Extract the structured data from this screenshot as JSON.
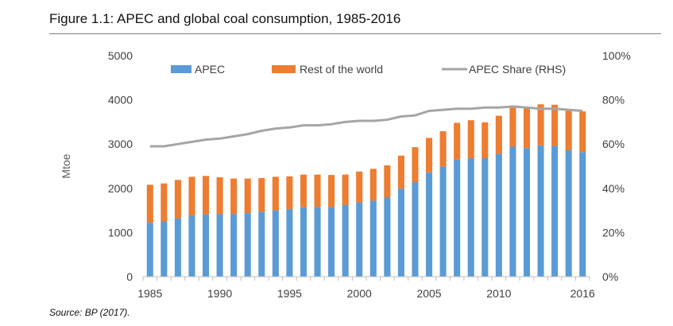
{
  "figure": {
    "title": "Figure 1.1: APEC and global coal consumption, 1985-2016",
    "source": "Source: BP (2017)."
  },
  "chart_data": {
    "type": "bar",
    "stacked": true,
    "title": "",
    "xlabel": "",
    "ylabel": "Mtoe",
    "y2label": "",
    "ylim": [
      0,
      5000
    ],
    "y2lim": [
      0,
      100
    ],
    "yticks": [
      "0",
      "1000",
      "2000",
      "3000",
      "4000",
      "5000"
    ],
    "y2ticks": [
      "0%",
      "20%",
      "40%",
      "60%",
      "80%",
      "100%"
    ],
    "xtick_labels": [
      "1985",
      "1990",
      "1995",
      "2000",
      "2005",
      "2010",
      "2016"
    ],
    "categories": [
      1985,
      1986,
      1987,
      1988,
      1989,
      1990,
      1991,
      1992,
      1993,
      1994,
      1995,
      1996,
      1997,
      1998,
      1999,
      2000,
      2001,
      2002,
      2003,
      2004,
      2005,
      2006,
      2007,
      2008,
      2009,
      2010,
      2011,
      2012,
      2013,
      2014,
      2015,
      2016
    ],
    "series": [
      {
        "name": "APEC",
        "kind": "bar",
        "color": "#5b9bd5",
        "values": [
          1220,
          1250,
          1320,
          1380,
          1410,
          1420,
          1420,
          1440,
          1470,
          1500,
          1530,
          1570,
          1580,
          1580,
          1620,
          1680,
          1720,
          1790,
          1990,
          2140,
          2360,
          2490,
          2650,
          2680,
          2680,
          2780,
          2940,
          2910,
          2970,
          2960,
          2860,
          2820
        ]
      },
      {
        "name": "Rest of the world",
        "kind": "bar",
        "color": "#ed7d31",
        "values": [
          860,
          860,
          870,
          880,
          870,
          830,
          800,
          780,
          760,
          760,
          740,
          740,
          730,
          720,
          690,
          700,
          720,
          730,
          750,
          790,
          780,
          800,
          830,
          860,
          810,
          860,
          910,
          900,
          930,
          930,
          900,
          920
        ]
      },
      {
        "name": "APEC Share (RHS)",
        "kind": "line",
        "axis": "right",
        "color": "#a5a5a5",
        "values": [
          59,
          59,
          60,
          61,
          62,
          62.5,
          63.5,
          64.5,
          66,
          67,
          67.5,
          68.5,
          68.5,
          69,
          70,
          70.5,
          70.5,
          71,
          72.5,
          73,
          75,
          75.5,
          76,
          76,
          76.5,
          76.5,
          77,
          76.5,
          76,
          76,
          75.5,
          75
        ]
      }
    ],
    "legend": {
      "position": "top-center"
    },
    "grid": false
  }
}
